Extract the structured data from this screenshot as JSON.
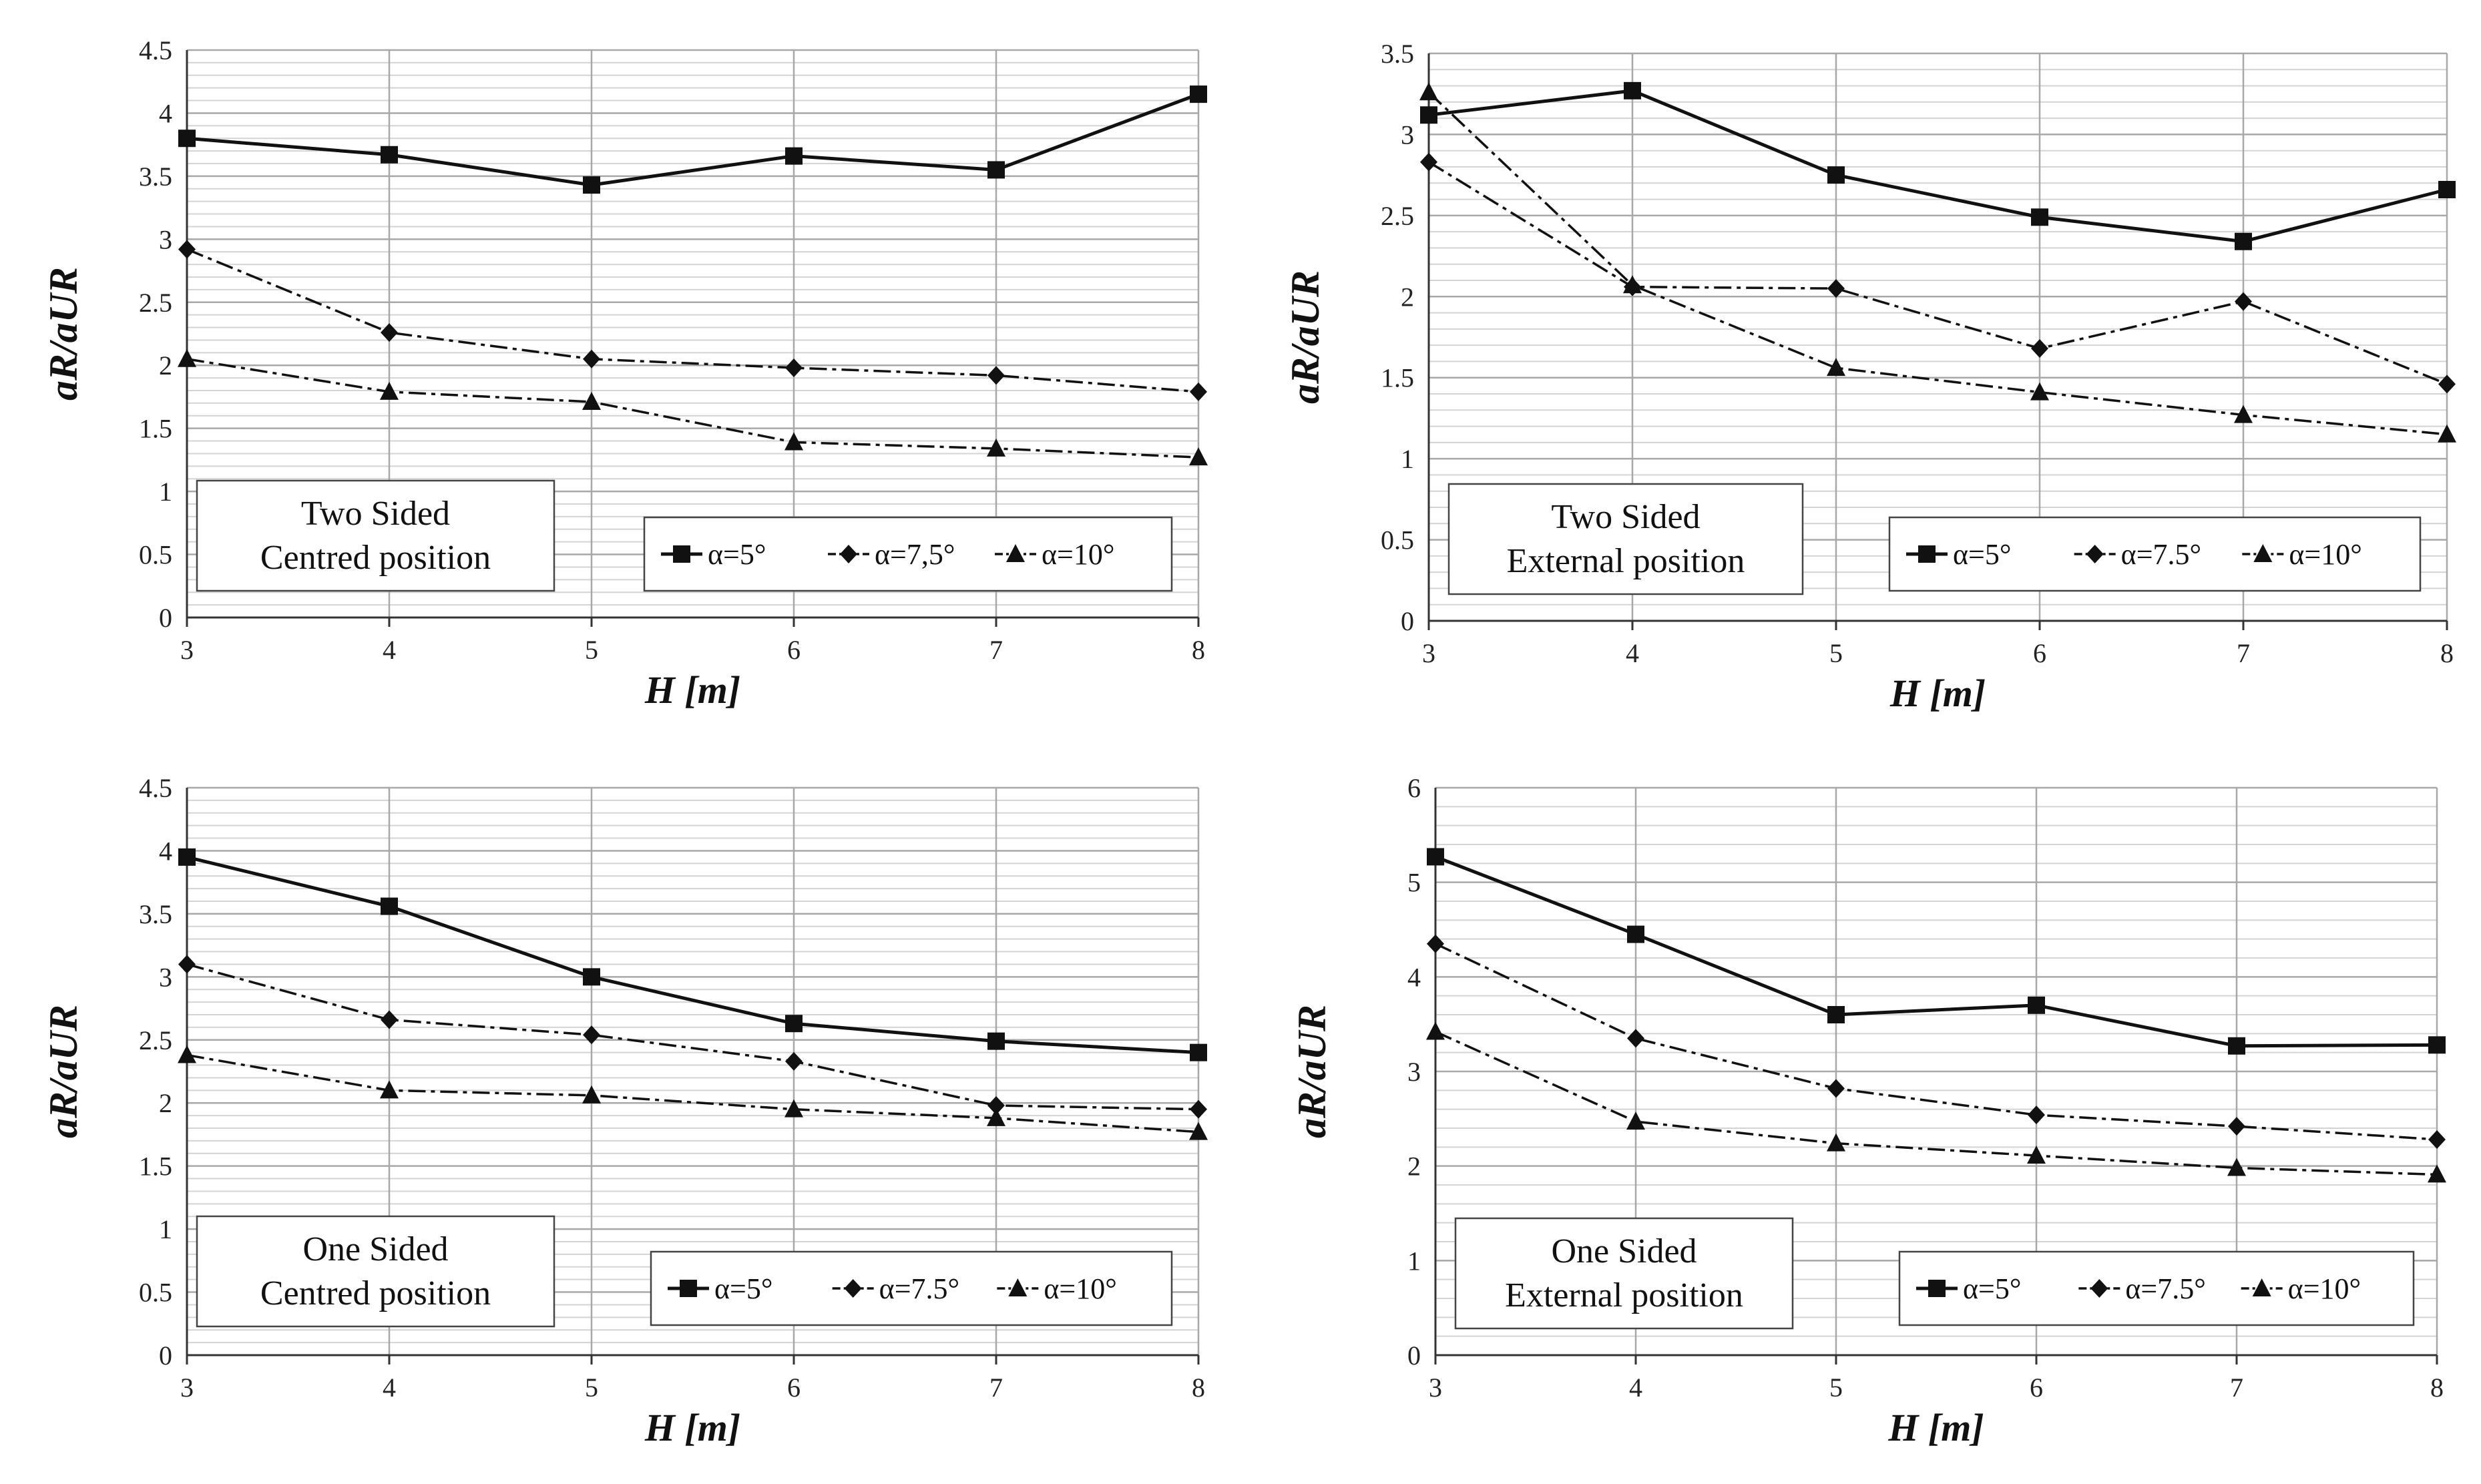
{
  "chart_data": [
    {
      "type": "line",
      "annotation": [
        "Two Sided",
        "Centred  position"
      ],
      "xlabel": "H [m]",
      "ylabel": "aR/aUR",
      "x": [
        3,
        4,
        5,
        6,
        7,
        8
      ],
      "xlim": [
        3,
        8
      ],
      "ylim": [
        0,
        4.5
      ],
      "yticks": [
        "0",
        "0.5",
        "1",
        "1.5",
        "2",
        "2.5",
        "3",
        "3.5",
        "4",
        "4.5"
      ],
      "ytick_values": [
        0,
        0.5,
        1,
        1.5,
        2,
        2.5,
        3,
        3.5,
        4,
        4.5
      ],
      "grid": true,
      "series": [
        {
          "name": "α=5°",
          "legend_label": "α=5°",
          "marker": "square",
          "dash": "solid",
          "values": [
            3.8,
            3.67,
            3.43,
            3.66,
            3.55,
            4.15
          ]
        },
        {
          "name": "α=7,5°",
          "legend_label": "α=7,5°",
          "marker": "diamond",
          "dash": "dashdot",
          "values": [
            2.92,
            2.26,
            2.05,
            1.98,
            1.92,
            1.79
          ]
        },
        {
          "name": "α=10°",
          "legend_label": "α=10°",
          "marker": "triangle",
          "dash": "dashdot",
          "values": [
            2.05,
            1.79,
            1.71,
            1.39,
            1.34,
            1.27
          ]
        }
      ]
    },
    {
      "type": "line",
      "annotation": [
        "Two Sided",
        "External position"
      ],
      "xlabel": "H [m]",
      "ylabel": "aR/aUR",
      "x": [
        3,
        4,
        5,
        6,
        7,
        8
      ],
      "xlim": [
        3,
        8
      ],
      "ylim": [
        0,
        3.5
      ],
      "yticks": [
        "0",
        "0.5",
        "1",
        "1.5",
        "2",
        "2.5",
        "3",
        "3.5"
      ],
      "ytick_values": [
        0,
        0.5,
        1,
        1.5,
        2,
        2.5,
        3,
        3.5
      ],
      "grid": true,
      "series": [
        {
          "name": "α=5°",
          "legend_label": "α=5°",
          "marker": "square",
          "dash": "solid",
          "values": [
            3.12,
            3.27,
            2.75,
            2.49,
            2.34,
            2.66
          ]
        },
        {
          "name": "α=7.5°",
          "legend_label": "α=7.5°",
          "marker": "diamond",
          "dash": "dashdot",
          "values": [
            2.83,
            2.06,
            2.05,
            1.68,
            1.97,
            1.46
          ]
        },
        {
          "name": "α=10°",
          "legend_label": "α=10°",
          "marker": "triangle",
          "dash": "dashdot",
          "values": [
            3.26,
            2.07,
            1.56,
            1.41,
            1.27,
            1.15
          ]
        }
      ]
    },
    {
      "type": "line",
      "annotation": [
        "One Sided",
        "Centred  position"
      ],
      "xlabel": "H [m]",
      "ylabel": "aR/aUR",
      "x": [
        3,
        4,
        5,
        6,
        7,
        8
      ],
      "xlim": [
        3,
        8
      ],
      "ylim": [
        0,
        4.5
      ],
      "yticks": [
        "0",
        "0.5",
        "1",
        "1.5",
        "2",
        "2.5",
        "3",
        "3.5",
        "4",
        "4.5"
      ],
      "ytick_values": [
        0,
        0.5,
        1,
        1.5,
        2,
        2.5,
        3,
        3.5,
        4,
        4.5
      ],
      "grid": true,
      "series": [
        {
          "name": "α=5°",
          "legend_label": "α=5°",
          "marker": "square",
          "dash": "solid",
          "values": [
            3.95,
            3.56,
            3.0,
            2.63,
            2.49,
            2.4
          ]
        },
        {
          "name": "α=7.5°",
          "legend_label": "α=7.5°",
          "marker": "diamond",
          "dash": "dashdot",
          "values": [
            3.1,
            2.66,
            2.54,
            2.33,
            1.98,
            1.95
          ]
        },
        {
          "name": "α=10°",
          "legend_label": "α=10°",
          "marker": "triangle",
          "dash": "dashdot",
          "values": [
            2.38,
            2.1,
            2.06,
            1.95,
            1.88,
            1.77
          ]
        }
      ]
    },
    {
      "type": "line",
      "annotation": [
        "One Sided",
        "External position"
      ],
      "xlabel": "H [m]",
      "ylabel": "aR/aUR",
      "x": [
        3,
        4,
        5,
        6,
        7,
        8
      ],
      "xlim": [
        3,
        8
      ],
      "ylim": [
        0,
        6
      ],
      "yticks": [
        "0",
        "1",
        "2",
        "3",
        "4",
        "5",
        "6"
      ],
      "ytick_values": [
        0,
        1,
        2,
        3,
        4,
        5,
        6
      ],
      "grid": true,
      "series": [
        {
          "name": "α=5°",
          "legend_label": "α=5°",
          "marker": "square",
          "dash": "solid",
          "values": [
            5.27,
            4.45,
            3.6,
            3.7,
            3.27,
            3.28
          ]
        },
        {
          "name": "α=7.5°",
          "legend_label": "α=7.5°",
          "marker": "diamond",
          "dash": "dashdot",
          "values": [
            4.35,
            3.35,
            2.82,
            2.54,
            2.42,
            2.28
          ]
        },
        {
          "name": "α=10°",
          "legend_label": "α=10°",
          "marker": "triangle",
          "dash": "dashdot",
          "values": [
            3.42,
            2.47,
            2.24,
            2.11,
            1.98,
            1.91
          ]
        }
      ]
    }
  ]
}
